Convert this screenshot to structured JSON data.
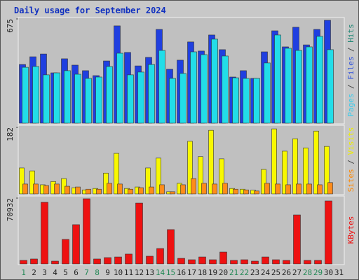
{
  "chart_data": {
    "type": "bar",
    "title": "Daily usage for September 2024",
    "categories": [
      "1",
      "2",
      "3",
      "4",
      "5",
      "6",
      "7",
      "8",
      "9",
      "10",
      "11",
      "12",
      "13",
      "14",
      "15",
      "16",
      "17",
      "18",
      "19",
      "20",
      "21",
      "22",
      "23",
      "24",
      "25",
      "26",
      "27",
      "28",
      "29",
      "30",
      "31"
    ],
    "highlighted_categories": [
      0,
      6,
      7,
      13,
      14,
      20,
      21,
      27,
      28
    ],
    "highlight_color": "#228855",
    "panels": [
      {
        "ylim": [
          0,
          675
        ],
        "yticks": [
          675
        ],
        "label_parts": [
          {
            "text": "Pages",
            "color": "#33ccee"
          },
          {
            "text": " / ",
            "color": "#444444"
          },
          {
            "text": "Files",
            "color": "#3355dd"
          },
          {
            "text": " / ",
            "color": "#444444"
          },
          {
            "text": "Hits",
            "color": "#228877"
          }
        ],
        "series": [
          {
            "color": "#1f3fe0",
            "values": [
              380,
              430,
              448,
              326,
              417,
              376,
              340,
              308,
              403,
              630,
              458,
              371,
              426,
              607,
              349,
              408,
              526,
              467,
              571,
              476,
              299,
              340,
              290,
              462,
              598,
              494,
              621,
              507,
              607,
              666,
              null
            ]
          },
          {
            "color": "#22dde8",
            "values": [
              362,
              367,
              313,
              326,
              340,
              317,
              290,
              299,
              367,
              453,
              313,
              331,
              380,
              471,
              290,
              322,
              462,
              444,
              544,
              435,
              294,
              290,
              290,
              390,
              571,
              485,
              471,
              494,
              562,
              476,
              null
            ]
          }
        ]
      },
      {
        "ylim": [
          0,
          182
        ],
        "yticks": [
          182
        ],
        "label_parts": [
          {
            "text": "Sites",
            "color": "#ff8800"
          },
          {
            "text": " / ",
            "color": "#444444"
          },
          {
            "text": "Visits",
            "color": "#eeee00"
          }
        ],
        "series": [
          {
            "color": "#f8f800",
            "values": [
              71,
              63,
              25,
              34,
              42,
              17,
              11,
              15,
              57,
              111,
              15,
              19,
              71,
              98,
              6,
              29,
              144,
              102,
              174,
              96,
              15,
              13,
              10,
              67,
              178,
              117,
              151,
              126,
              172,
              130,
              null
            ]
          },
          {
            "color": "#ff8c1a",
            "values": [
              27,
              27,
              23,
              27,
              21,
              19,
              13,
              13,
              29,
              27,
              13,
              17,
              19,
              25,
              6,
              25,
              42,
              29,
              27,
              29,
              13,
              11,
              8,
              29,
              27,
              25,
              27,
              27,
              25,
              31,
              null
            ]
          }
        ]
      },
      {
        "ylim": [
          0,
          70932
        ],
        "yticks": [
          70932
        ],
        "label_parts": [
          {
            "text": "KBytes",
            "color": "#ee1111"
          }
        ],
        "series": [
          {
            "color": "#ee1111",
            "values": [
              3800,
              5300,
              66400,
              3000,
              26400,
              42300,
              70200,
              5300,
              6800,
              7500,
              10600,
              65600,
              8300,
              16600,
              37000,
              6000,
              4500,
              7500,
              4500,
              12800,
              3800,
              4500,
              3000,
              7500,
              4500,
              3800,
              52800,
              3800,
              3800,
              67900,
              null
            ]
          }
        ]
      }
    ]
  }
}
